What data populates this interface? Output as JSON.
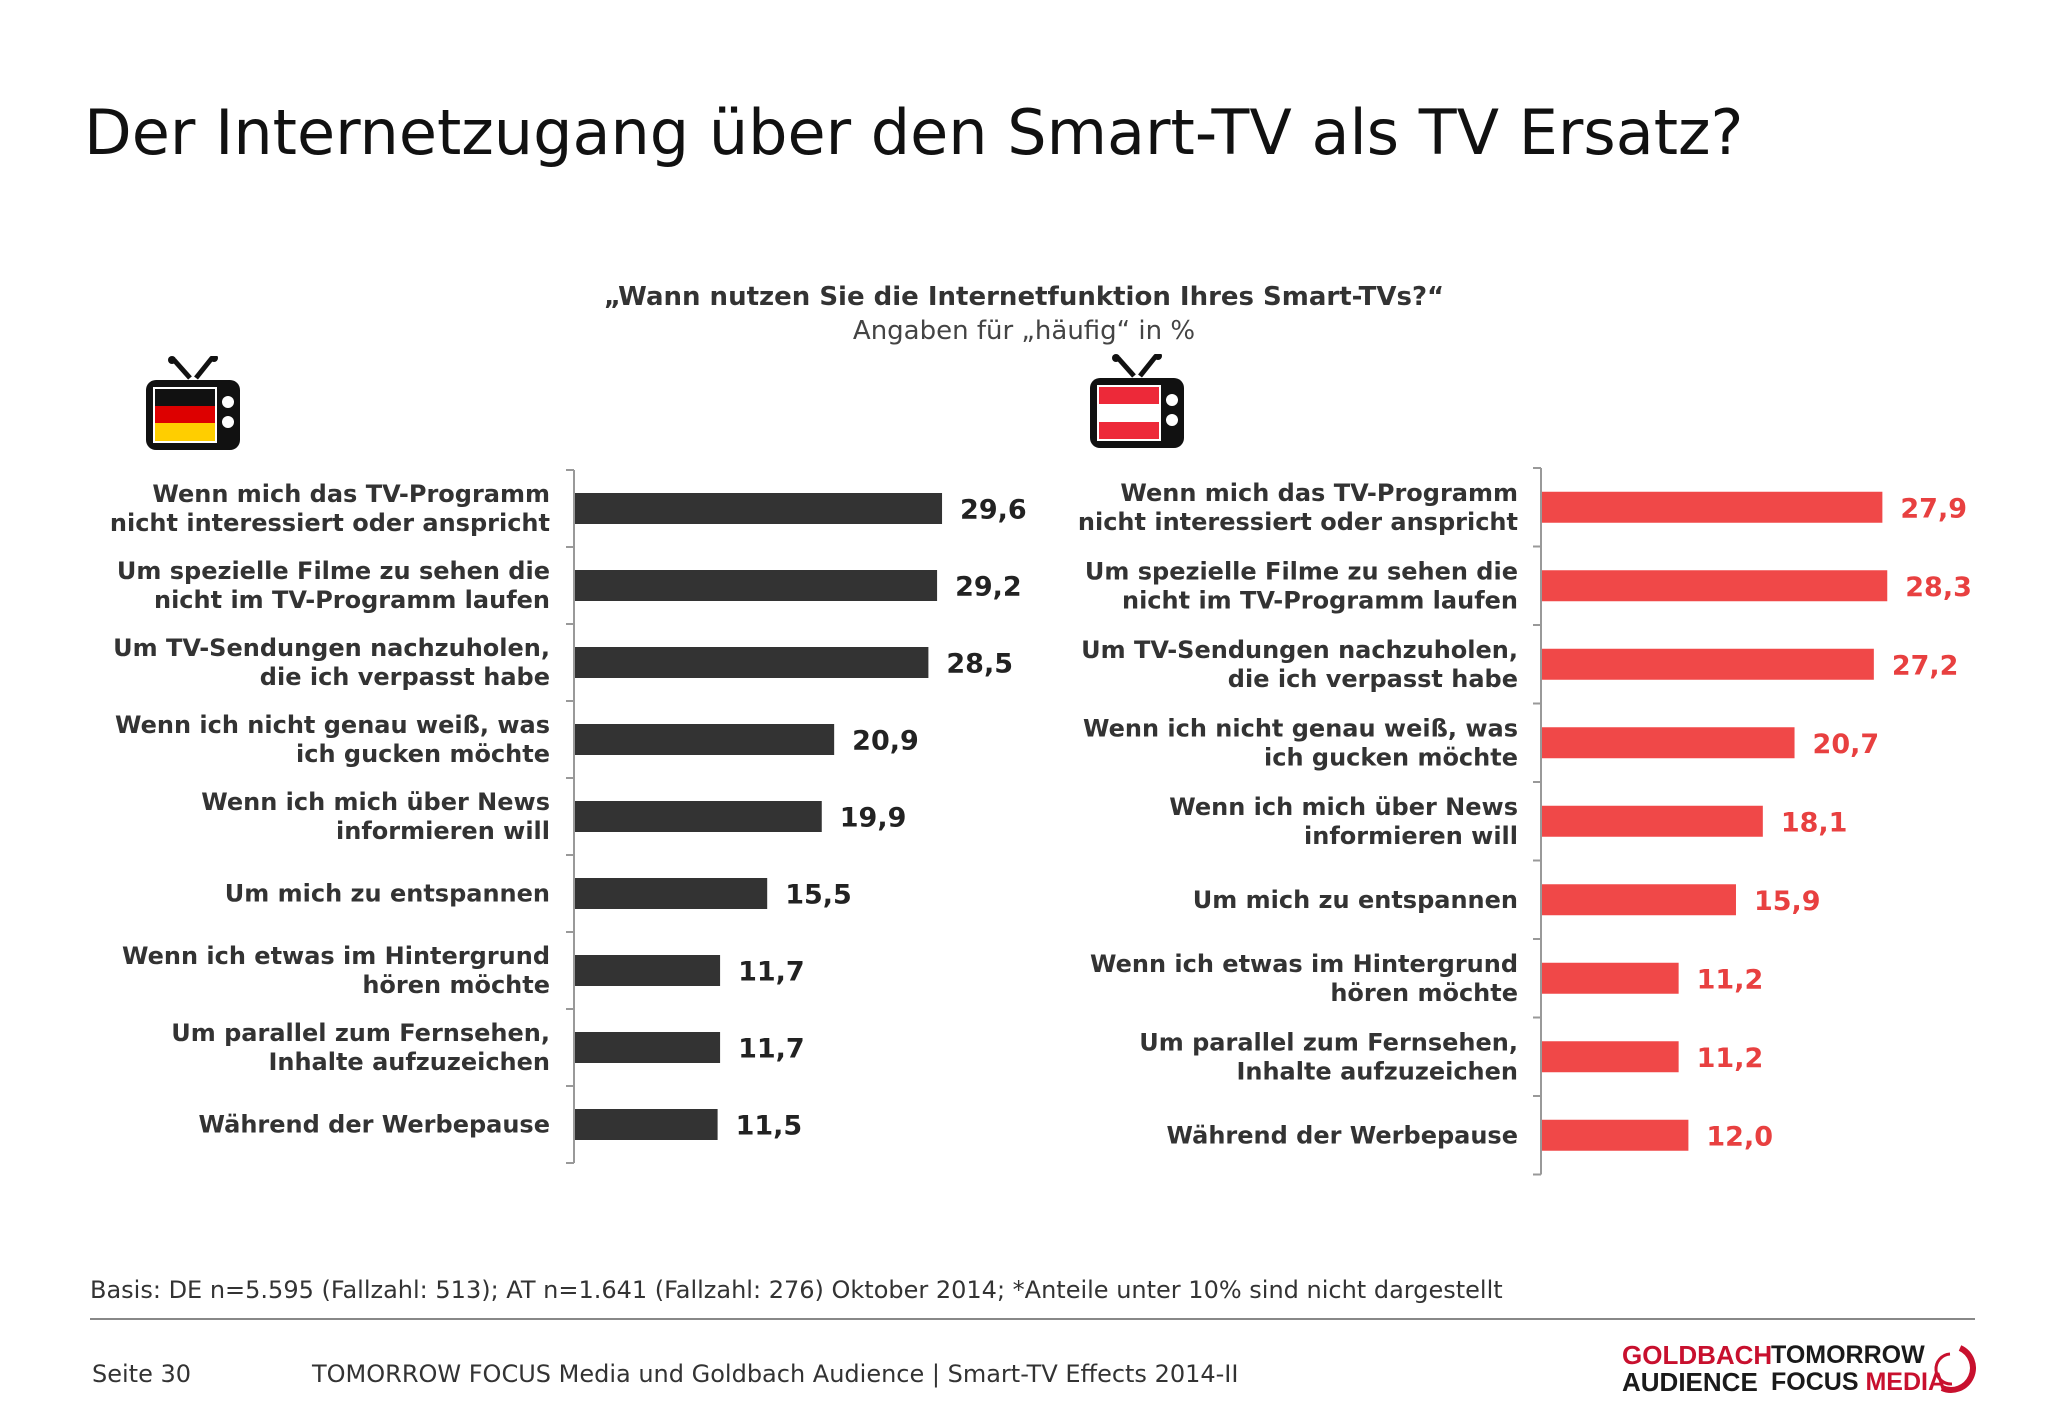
{
  "title": "Der Internetzugang über den Smart-TV als TV Ersatz?",
  "question": "„Wann nutzen Sie die Internetfunktion Ihres Smart-TVs?“",
  "unit_note": "Angaben für „häufig“ in %",
  "icons": {
    "left": "tv-germany-flag-icon",
    "right": "tv-austria-flag-icon"
  },
  "colors": {
    "de_bar": "#333333",
    "at_bar": "#f04848",
    "at_value": "#e84040",
    "de_value": "#222222"
  },
  "chart_data": [
    {
      "type": "bar",
      "orientation": "horizontal",
      "country": "DE",
      "categories": [
        [
          "Wenn mich das TV-Programm",
          "nicht interessiert oder anspricht"
        ],
        [
          "Um spezielle Filme zu sehen die",
          "nicht im TV-Programm laufen"
        ],
        [
          "Um TV-Sendungen nachzuholen,",
          "die ich verpasst habe"
        ],
        [
          "Wenn ich nicht genau weiß, was",
          "ich gucken möchte"
        ],
        [
          "Wenn ich mich über News",
          "informieren will"
        ],
        [
          "Um mich zu entspannen"
        ],
        [
          "Wenn ich etwas im Hintergrund",
          "hören möchte"
        ],
        [
          "Um parallel zum Fernsehen,",
          "Inhalte aufzuzeichen"
        ],
        [
          "Während der Werbepause"
        ]
      ],
      "values": [
        29.6,
        29.2,
        28.5,
        20.9,
        19.9,
        15.5,
        11.7,
        11.7,
        11.5
      ],
      "value_labels": [
        "29,6",
        "29,2",
        "28,5",
        "20,9",
        "19,9",
        "15,5",
        "11,7",
        "11,7",
        "11,5"
      ],
      "xlim": [
        0,
        30
      ]
    },
    {
      "type": "bar",
      "orientation": "horizontal",
      "country": "AT",
      "categories": [
        [
          "Wenn mich das TV-Programm",
          "nicht interessiert oder anspricht"
        ],
        [
          "Um spezielle Filme zu sehen die",
          "nicht im TV-Programm laufen"
        ],
        [
          "Um TV-Sendungen nachzuholen,",
          "die ich verpasst habe"
        ],
        [
          "Wenn ich nicht genau weiß, was",
          "ich gucken möchte"
        ],
        [
          "Wenn ich mich über News",
          "informieren will"
        ],
        [
          "Um mich zu entspannen"
        ],
        [
          "Wenn ich etwas im Hintergrund",
          "hören möchte"
        ],
        [
          "Um parallel zum Fernsehen,",
          "Inhalte aufzuzeichen"
        ],
        [
          "Während der Werbepause"
        ]
      ],
      "values": [
        27.9,
        28.3,
        27.2,
        20.7,
        18.1,
        15.9,
        11.2,
        11.2,
        12.0
      ],
      "value_labels": [
        "27,9",
        "28,3",
        "27,2",
        "20,7",
        "18,1",
        "15,9",
        "11,2",
        "11,2",
        "12,0"
      ],
      "xlim": [
        0,
        30
      ]
    }
  ],
  "footnote": "Basis: DE n=5.595 (Fallzahl: 513); AT n=1.641 (Fallzahl: 276) Oktober 2014; *Anteile unter 10% sind nicht dargestellt",
  "footer": {
    "page": "Seite 30",
    "source": "TOMORROW FOCUS Media und Goldbach Audience | Smart-TV Effects 2014-II",
    "logo_goldbach": [
      "GOLDBACH",
      "AUDIENCE"
    ],
    "logo_tf": [
      "TOMORROW",
      "FOCUS",
      "MEDIA"
    ]
  }
}
